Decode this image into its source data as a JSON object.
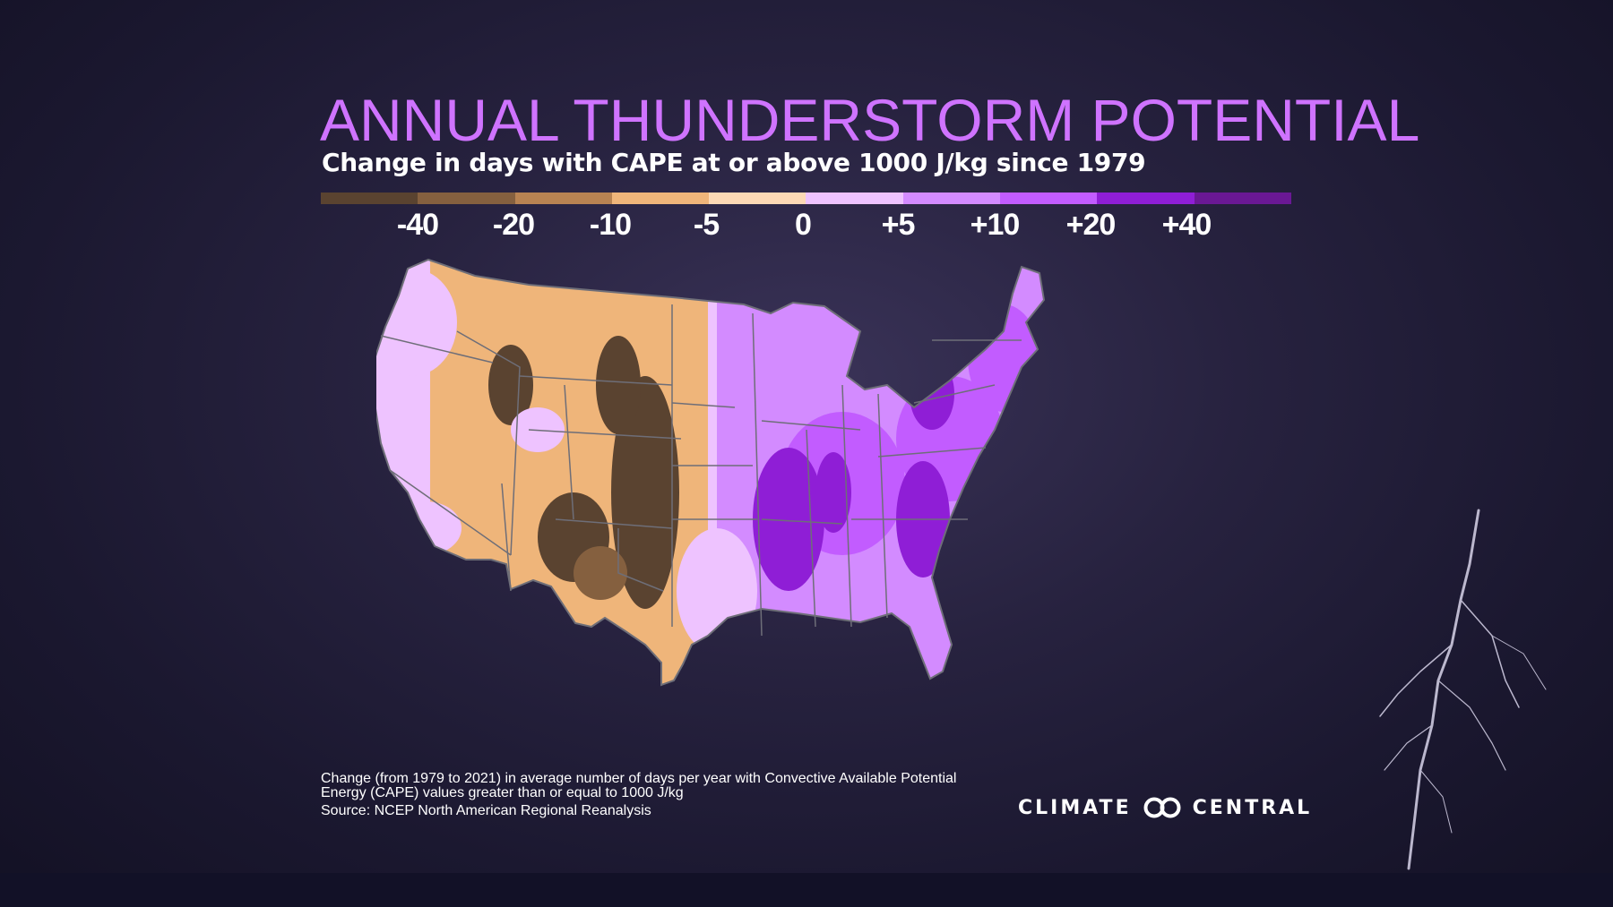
{
  "title": "ANNUAL THUNDERSTORM POTENTIAL",
  "subtitle": "Change in days with CAPE at or above 1000 J/kg since 1979",
  "legend": {
    "colors": [
      "#5a4330",
      "#85603f",
      "#b88352",
      "#efb57a",
      "#fcd9b5",
      "#eec3ff",
      "#d38bff",
      "#c25cff",
      "#8f1ed6",
      "#6a1894"
    ],
    "ticks": [
      "-40",
      "-20",
      "-10",
      "-5",
      "0",
      "+5",
      "+10",
      "+20",
      "+40"
    ]
  },
  "note": {
    "line1": "Change (from 1979 to 2021) in average number of days per year with Convective Available Potential",
    "line2": "Energy (CAPE) values greater than or equal to 1000 J/kg",
    "source": "Source: NCEP North American Regional Reanalysis"
  },
  "logo": {
    "left": "CLIMATE",
    "right": "CENTRAL"
  }
}
